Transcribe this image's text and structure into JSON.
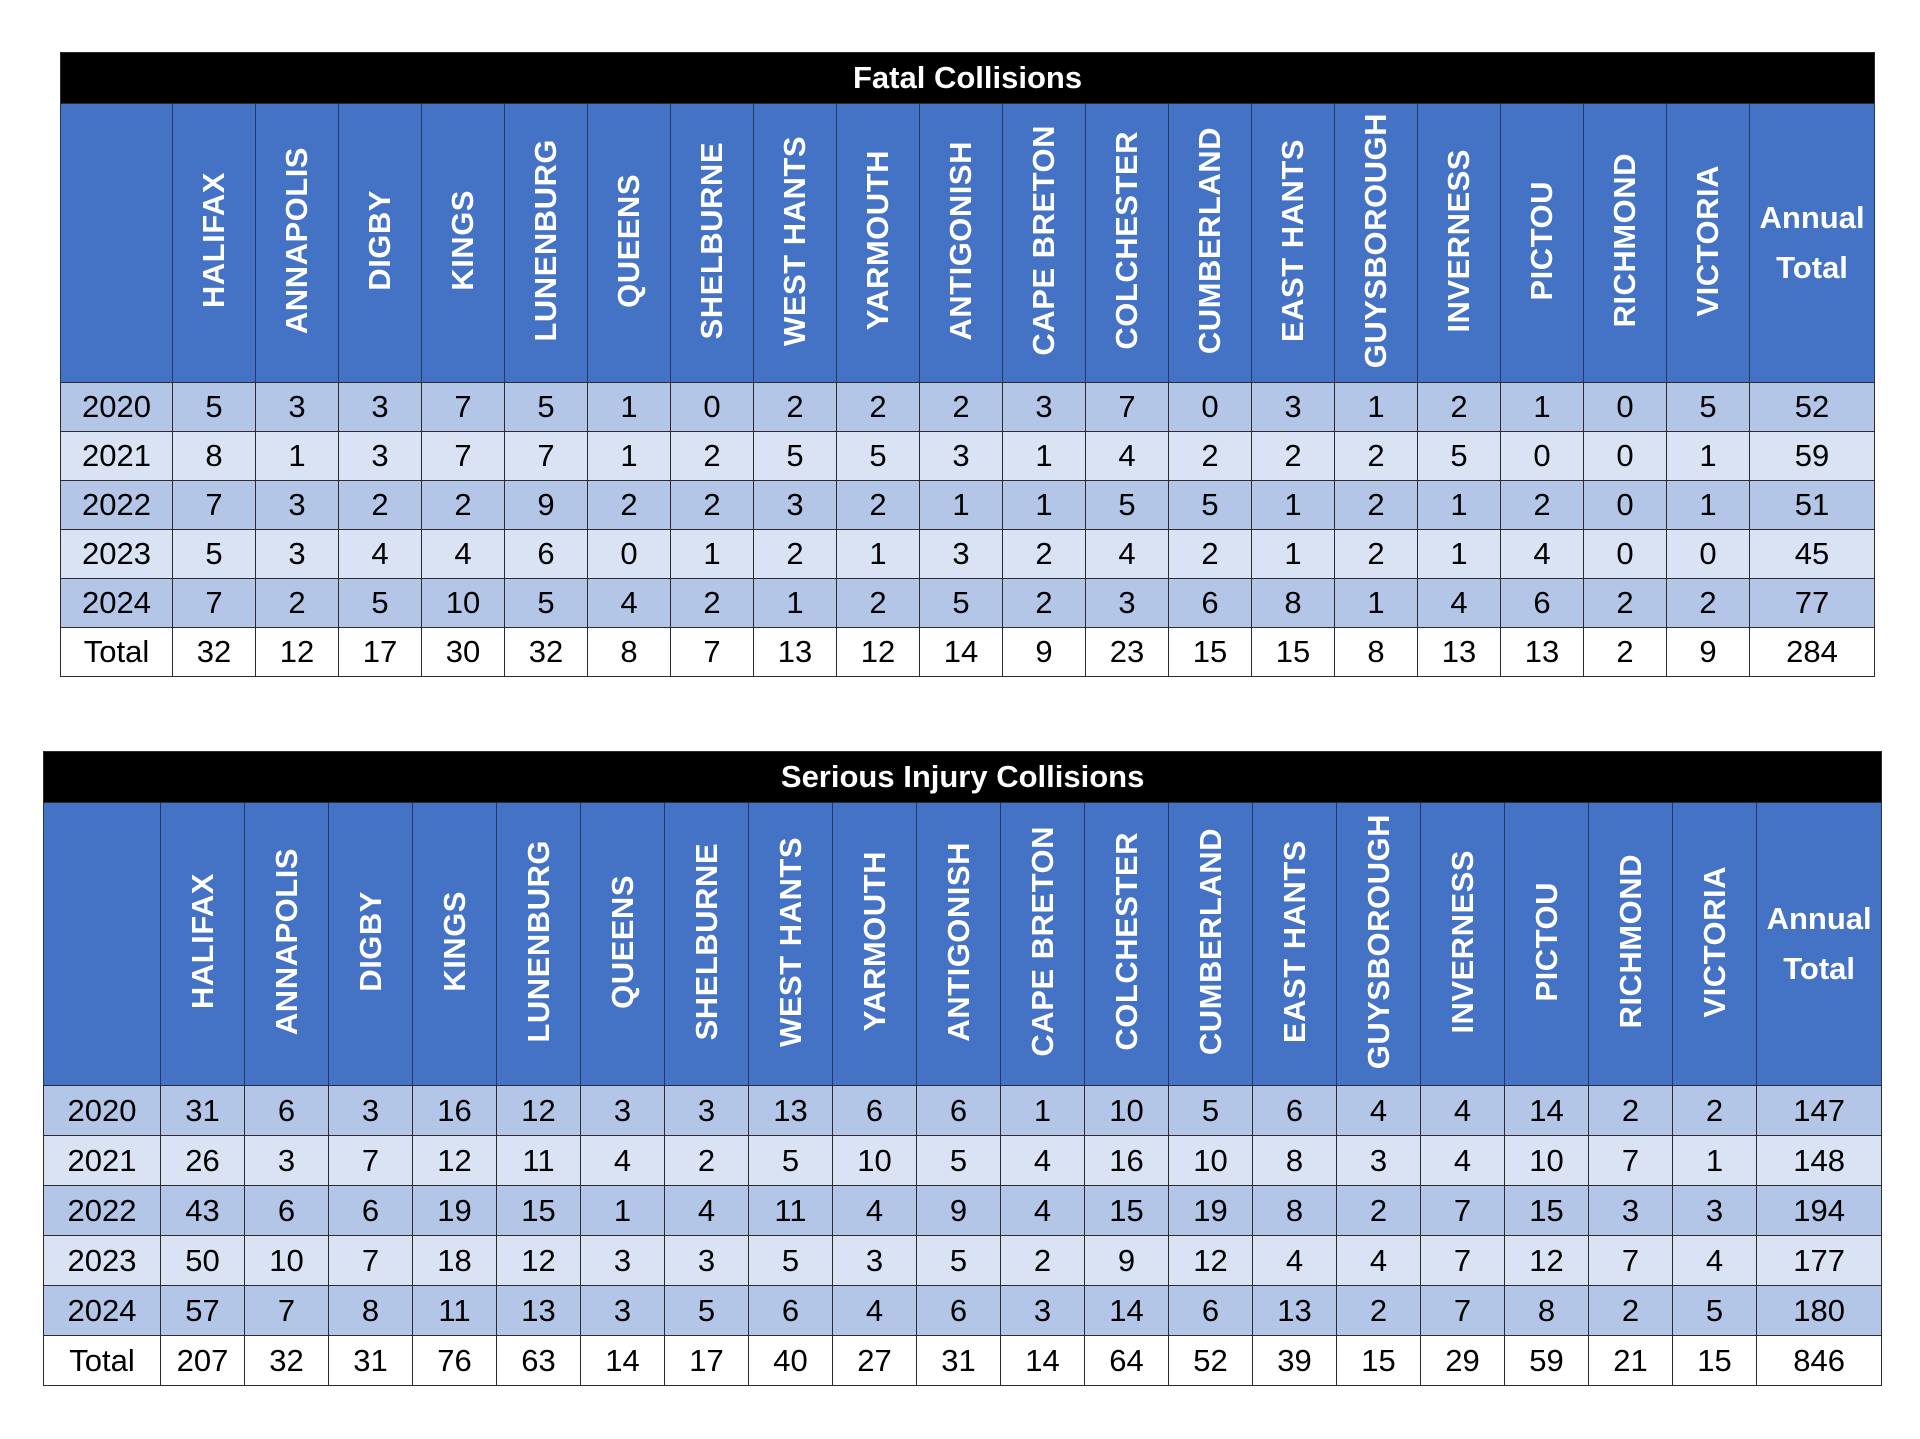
{
  "tables": [
    {
      "title": "Fatal Collisions",
      "annual_total_label_line1": "Annual",
      "annual_total_label_line2": "Total",
      "columns": [
        "HALIFAX",
        "ANNAPOLIS",
        "DIGBY",
        "KINGS",
        "LUNENBURG",
        "QUEENS",
        "SHELBURNE",
        "WEST HANTS",
        "YARMOUTH",
        "ANTIGONISH",
        "CAPE BRETON",
        "COLCHESTER",
        "CUMBERLAND",
        "EAST HANTS",
        "GUYSBOROUGH",
        "INVERNESS",
        "PICTOU",
        "RICHMOND",
        "VICTORIA"
      ],
      "rows": [
        {
          "label": "2020",
          "values": [
            "5",
            "3",
            "3",
            "7",
            "5",
            "1",
            "0",
            "2",
            "2",
            "2",
            "3",
            "7",
            "0",
            "3",
            "1",
            "2",
            "1",
            "0",
            "5"
          ],
          "annual_total": "52"
        },
        {
          "label": "2021",
          "values": [
            "8",
            "1",
            "3",
            "7",
            "7",
            "1",
            "2",
            "5",
            "5",
            "3",
            "1",
            "4",
            "2",
            "2",
            "2",
            "5",
            "0",
            "0",
            "1"
          ],
          "annual_total": "59"
        },
        {
          "label": "2022",
          "values": [
            "7",
            "3",
            "2",
            "2",
            "9",
            "2",
            "2",
            "3",
            "2",
            "1",
            "1",
            "5",
            "5",
            "1",
            "2",
            "1",
            "2",
            "0",
            "1"
          ],
          "annual_total": "51"
        },
        {
          "label": "2023",
          "values": [
            "5",
            "3",
            "4",
            "4",
            "6",
            "0",
            "1",
            "2",
            "1",
            "3",
            "2",
            "4",
            "2",
            "1",
            "2",
            "1",
            "4",
            "0",
            "0"
          ],
          "annual_total": "45"
        },
        {
          "label": "2024",
          "values": [
            "7",
            "2",
            "5",
            "10",
            "5",
            "4",
            "2",
            "1",
            "2",
            "5",
            "2",
            "3",
            "6",
            "8",
            "1",
            "4",
            "6",
            "2",
            "2"
          ],
          "annual_total": "77"
        },
        {
          "label": "Total",
          "values": [
            "32",
            "12",
            "17",
            "30",
            "32",
            "8",
            "7",
            "13",
            "12",
            "14",
            "9",
            "23",
            "15",
            "15",
            "8",
            "13",
            "13",
            "2",
            "9"
          ],
          "annual_total": "284"
        }
      ]
    },
    {
      "title": "Serious Injury Collisions",
      "annual_total_label_line1": "Annual",
      "annual_total_label_line2": "Total",
      "columns": [
        "HALIFAX",
        "ANNAPOLIS",
        "DIGBY",
        "KINGS",
        "LUNENBURG",
        "QUEENS",
        "SHELBURNE",
        "WEST HANTS",
        "YARMOUTH",
        "ANTIGONISH",
        "CAPE BRETON",
        "COLCHESTER",
        "CUMBERLAND",
        "EAST HANTS",
        "GUYSBOROUGH",
        "INVERNESS",
        "PICTOU",
        "RICHMOND",
        "VICTORIA"
      ],
      "rows": [
        {
          "label": "2020",
          "values": [
            "31",
            "6",
            "3",
            "16",
            "12",
            "3",
            "3",
            "13",
            "6",
            "6",
            "1",
            "10",
            "5",
            "6",
            "4",
            "4",
            "14",
            "2",
            "2"
          ],
          "annual_total": "147"
        },
        {
          "label": "2021",
          "values": [
            "26",
            "3",
            "7",
            "12",
            "11",
            "4",
            "2",
            "5",
            "10",
            "5",
            "4",
            "16",
            "10",
            "8",
            "3",
            "4",
            "10",
            "7",
            "1"
          ],
          "annual_total": "148"
        },
        {
          "label": "2022",
          "values": [
            "43",
            "6",
            "6",
            "19",
            "15",
            "1",
            "4",
            "11",
            "4",
            "9",
            "4",
            "15",
            "19",
            "8",
            "2",
            "7",
            "15",
            "3",
            "3"
          ],
          "annual_total": "194"
        },
        {
          "label": "2023",
          "values": [
            "50",
            "10",
            "7",
            "18",
            "12",
            "3",
            "3",
            "5",
            "3",
            "5",
            "2",
            "9",
            "12",
            "4",
            "4",
            "7",
            "12",
            "7",
            "4"
          ],
          "annual_total": "177"
        },
        {
          "label": "2024",
          "values": [
            "57",
            "7",
            "8",
            "11",
            "13",
            "3",
            "5",
            "6",
            "4",
            "6",
            "3",
            "14",
            "6",
            "13",
            "2",
            "7",
            "8",
            "2",
            "5"
          ],
          "annual_total": "180"
        },
        {
          "label": "Total",
          "values": [
            "207",
            "32",
            "31",
            "76",
            "63",
            "14",
            "17",
            "40",
            "27",
            "31",
            "14",
            "64",
            "52",
            "39",
            "15",
            "29",
            "59",
            "21",
            "15"
          ],
          "annual_total": "846"
        }
      ]
    }
  ],
  "colors": {
    "title_bg": "#000000",
    "header_bg": "#4472c4",
    "row_dark": "#b4c6e7",
    "row_light": "#dae3f3",
    "total_row": "#ffffff"
  }
}
